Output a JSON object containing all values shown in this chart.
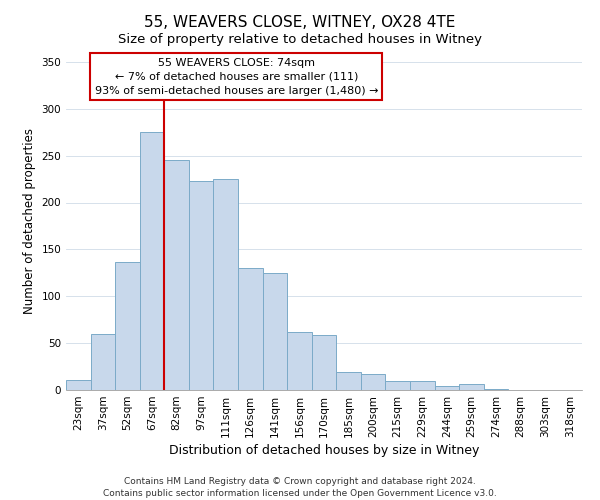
{
  "title": "55, WEAVERS CLOSE, WITNEY, OX28 4TE",
  "subtitle": "Size of property relative to detached houses in Witney",
  "xlabel": "Distribution of detached houses by size in Witney",
  "ylabel": "Number of detached properties",
  "bar_labels": [
    "23sqm",
    "37sqm",
    "52sqm",
    "67sqm",
    "82sqm",
    "97sqm",
    "111sqm",
    "126sqm",
    "141sqm",
    "156sqm",
    "170sqm",
    "185sqm",
    "200sqm",
    "215sqm",
    "229sqm",
    "244sqm",
    "259sqm",
    "274sqm",
    "288sqm",
    "303sqm",
    "318sqm"
  ],
  "bar_values": [
    11,
    60,
    137,
    275,
    245,
    223,
    225,
    130,
    125,
    62,
    59,
    19,
    17,
    10,
    10,
    4,
    6,
    1,
    0,
    0,
    0
  ],
  "bar_color": "#c8d8eb",
  "bar_edge_color": "#7baac8",
  "vline_color": "#cc0000",
  "annotation_title": "55 WEAVERS CLOSE: 74sqm",
  "annotation_line1": "← 7% of detached houses are smaller (111)",
  "annotation_line2": "93% of semi-detached houses are larger (1,480) →",
  "annotation_box_color": "#ffffff",
  "annotation_box_edge": "#cc0000",
  "ylim": [
    0,
    360
  ],
  "yticks": [
    0,
    50,
    100,
    150,
    200,
    250,
    300,
    350
  ],
  "footer1": "Contains HM Land Registry data © Crown copyright and database right 2024.",
  "footer2": "Contains public sector information licensed under the Open Government Licence v3.0.",
  "title_fontsize": 11,
  "subtitle_fontsize": 9.5,
  "xlabel_fontsize": 9,
  "ylabel_fontsize": 8.5,
  "tick_fontsize": 7.5,
  "footer_fontsize": 6.5,
  "ann_fontsize": 8
}
